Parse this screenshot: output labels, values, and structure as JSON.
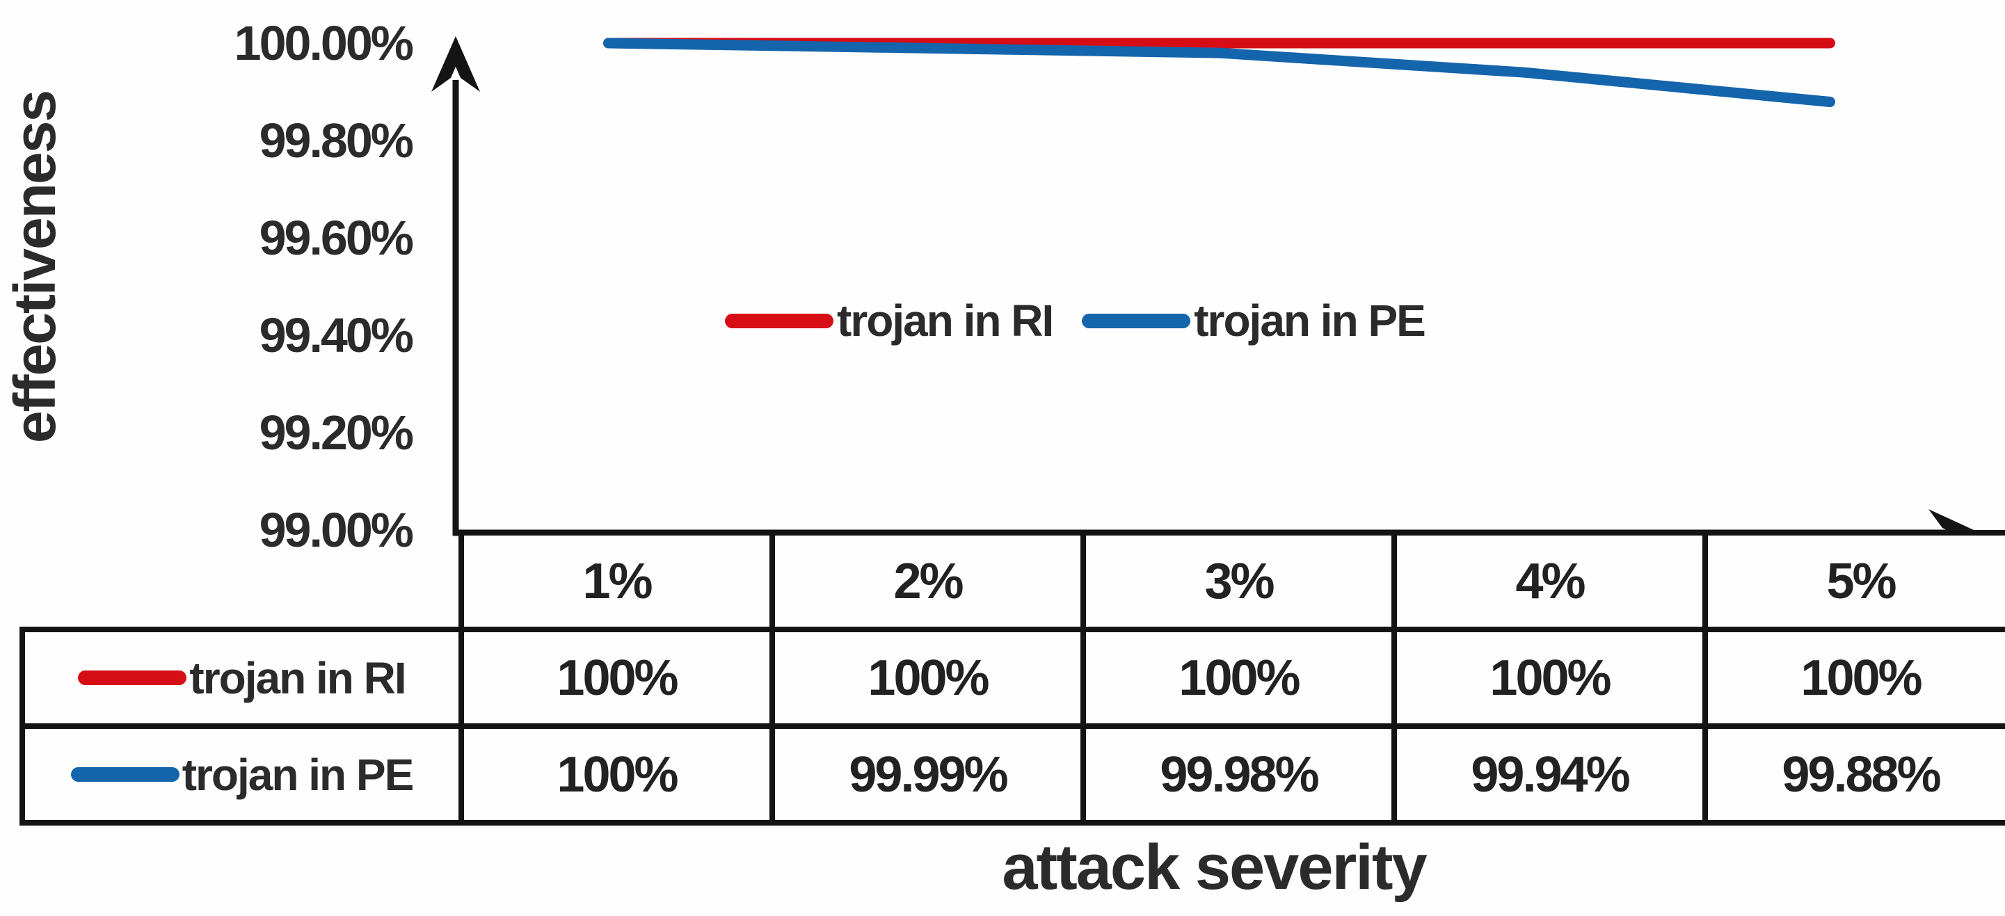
{
  "figure": {
    "y_axis_title": "effectiveness",
    "x_axis_title": "attack severity"
  },
  "colors": {
    "series_red": "#d60d15",
    "series_blue": "#1565ac",
    "axis_black": "#141414",
    "text_dark": "#2b2b2b"
  },
  "chart_data": {
    "type": "line",
    "categories": [
      "1%",
      "2%",
      "3%",
      "4%",
      "5%"
    ],
    "series": [
      {
        "name": "trojan in RI",
        "color": "#d60d15",
        "values": [
          100,
          100,
          100,
          100,
          100
        ]
      },
      {
        "name": "trojan in PE",
        "color": "#1565ac",
        "values": [
          100,
          99.99,
          99.98,
          99.94,
          99.88
        ]
      }
    ],
    "title": "",
    "xlabel": "attack severity",
    "ylabel": "effectiveness",
    "ylim": [
      99.0,
      100.0
    ],
    "ytick_labels": [
      "100.00%",
      "99.80%",
      "99.60%",
      "99.40%",
      "99.20%",
      "99.00%"
    ],
    "legend_entries": [
      "trojan in RI",
      "trojan in PE"
    ],
    "legend_position": "inside-upper-center",
    "grid": false
  },
  "table": {
    "column_headers": [
      "1%",
      "2%",
      "3%",
      "4%",
      "5%"
    ],
    "rows": [
      {
        "label": "trojan in RI",
        "swatch_color": "#d60d15",
        "values": [
          "100%",
          "100%",
          "100%",
          "100%",
          "100%"
        ]
      },
      {
        "label": "trojan in PE",
        "swatch_color": "#1565ac",
        "values": [
          "100%",
          "99.99%",
          "99.98%",
          "99.94%",
          "99.88%"
        ]
      }
    ]
  }
}
